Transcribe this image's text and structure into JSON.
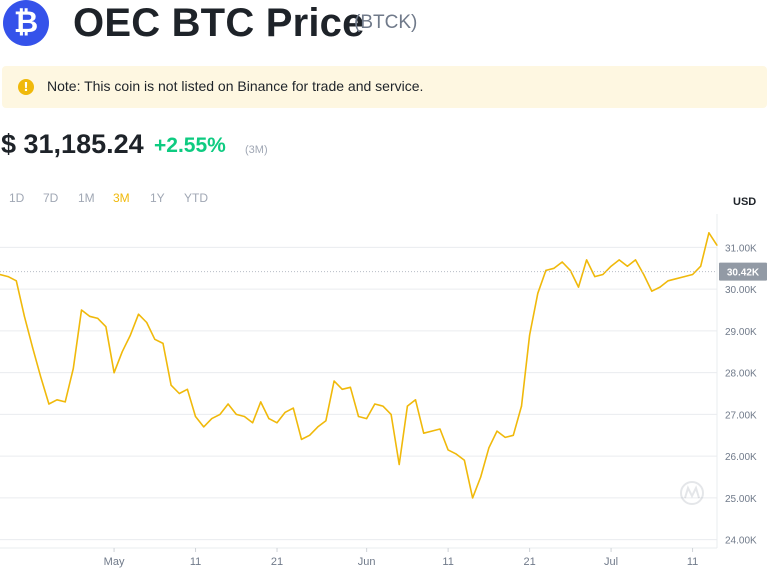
{
  "header": {
    "logo_glyph": "₿",
    "title": "OEC BTC Price",
    "ticker": "(BTCK)"
  },
  "note": {
    "icon": "exclamation-icon",
    "text": "Note: This coin is not listed on Binance for trade and service."
  },
  "price": {
    "value": "$ 31,185.24",
    "change": "+2.55%",
    "period": "(3M)"
  },
  "ranges": [
    "1D",
    "7D",
    "1M",
    "3M",
    "1Y",
    "YTD"
  ],
  "active_range": "3M",
  "currency": "USD",
  "colors": {
    "line": "#f0b90b",
    "positive": "#0ecb81",
    "note_bg": "#fef7e1",
    "logo": "#3552ea"
  },
  "chart_data": {
    "type": "line",
    "title": "",
    "xlabel": "",
    "ylabel": "",
    "y_unit": "USD",
    "x_tick_labels": [
      "May",
      "11",
      "21",
      "Jun",
      "11",
      "21",
      "Jul",
      "11"
    ],
    "y_tick_labels": [
      "24.00K",
      "25.00K",
      "26.00K",
      "27.00K",
      "28.00K",
      "29.00K",
      "30.00K",
      "31.00K"
    ],
    "ylim": [
      23800,
      31800
    ],
    "current_label": "30.42K",
    "current_value": 30420,
    "grid": true,
    "x": [
      "2023-04-17",
      "2023-04-18",
      "2023-04-19",
      "2023-04-20",
      "2023-04-21",
      "2023-04-22",
      "2023-04-23",
      "2023-04-24",
      "2023-04-25",
      "2023-04-26",
      "2023-04-27",
      "2023-04-28",
      "2023-04-29",
      "2023-04-30",
      "2023-05-01",
      "2023-05-02",
      "2023-05-03",
      "2023-05-04",
      "2023-05-05",
      "2023-05-06",
      "2023-05-07",
      "2023-05-08",
      "2023-05-09",
      "2023-05-10",
      "2023-05-11",
      "2023-05-12",
      "2023-05-13",
      "2023-05-14",
      "2023-05-15",
      "2023-05-16",
      "2023-05-17",
      "2023-05-18",
      "2023-05-19",
      "2023-05-20",
      "2023-05-21",
      "2023-05-22",
      "2023-05-23",
      "2023-05-24",
      "2023-05-25",
      "2023-05-26",
      "2023-05-27",
      "2023-05-28",
      "2023-05-29",
      "2023-05-30",
      "2023-05-31",
      "2023-06-01",
      "2023-06-02",
      "2023-06-03",
      "2023-06-04",
      "2023-06-05",
      "2023-06-06",
      "2023-06-07",
      "2023-06-08",
      "2023-06-09",
      "2023-06-10",
      "2023-06-11",
      "2023-06-12",
      "2023-06-13",
      "2023-06-14",
      "2023-06-15",
      "2023-06-16",
      "2023-06-17",
      "2023-06-18",
      "2023-06-19",
      "2023-06-20",
      "2023-06-21",
      "2023-06-22",
      "2023-06-23",
      "2023-06-24",
      "2023-06-25",
      "2023-06-26",
      "2023-06-27",
      "2023-06-28",
      "2023-06-29",
      "2023-06-30",
      "2023-07-01",
      "2023-07-02",
      "2023-07-03",
      "2023-07-04",
      "2023-07-05",
      "2023-07-06",
      "2023-07-07",
      "2023-07-08",
      "2023-07-09",
      "2023-07-10",
      "2023-07-11",
      "2023-07-12",
      "2023-07-13",
      "2023-07-14"
    ],
    "series": [
      {
        "values": [
          30350,
          30300,
          30200,
          29350,
          28600,
          27900,
          27250,
          27350,
          27300,
          28100,
          29500,
          29350,
          29300,
          29100,
          28000,
          28500,
          28900,
          29400,
          29200,
          28800,
          28700,
          27700,
          27500,
          27600,
          26950,
          26700,
          26900,
          27000,
          27250,
          27000,
          26950,
          26800,
          27300,
          26900,
          26800,
          27050,
          27150,
          26400,
          26500,
          26700,
          26850,
          27800,
          27600,
          27650,
          26950,
          26900,
          27250,
          27200,
          27000,
          25800,
          27200,
          27350,
          26550,
          26600,
          26650,
          26150,
          26050,
          25900,
          25000,
          25500,
          26200,
          26600,
          26450,
          26500,
          27200,
          28900,
          29900,
          30450,
          30500,
          30650,
          30450,
          30050,
          30700,
          30300,
          30350,
          30550,
          30700,
          30550,
          30700,
          30350,
          29950,
          30050,
          30200,
          30250,
          30300,
          30350,
          30550,
          31350,
          31050
        ]
      }
    ]
  }
}
